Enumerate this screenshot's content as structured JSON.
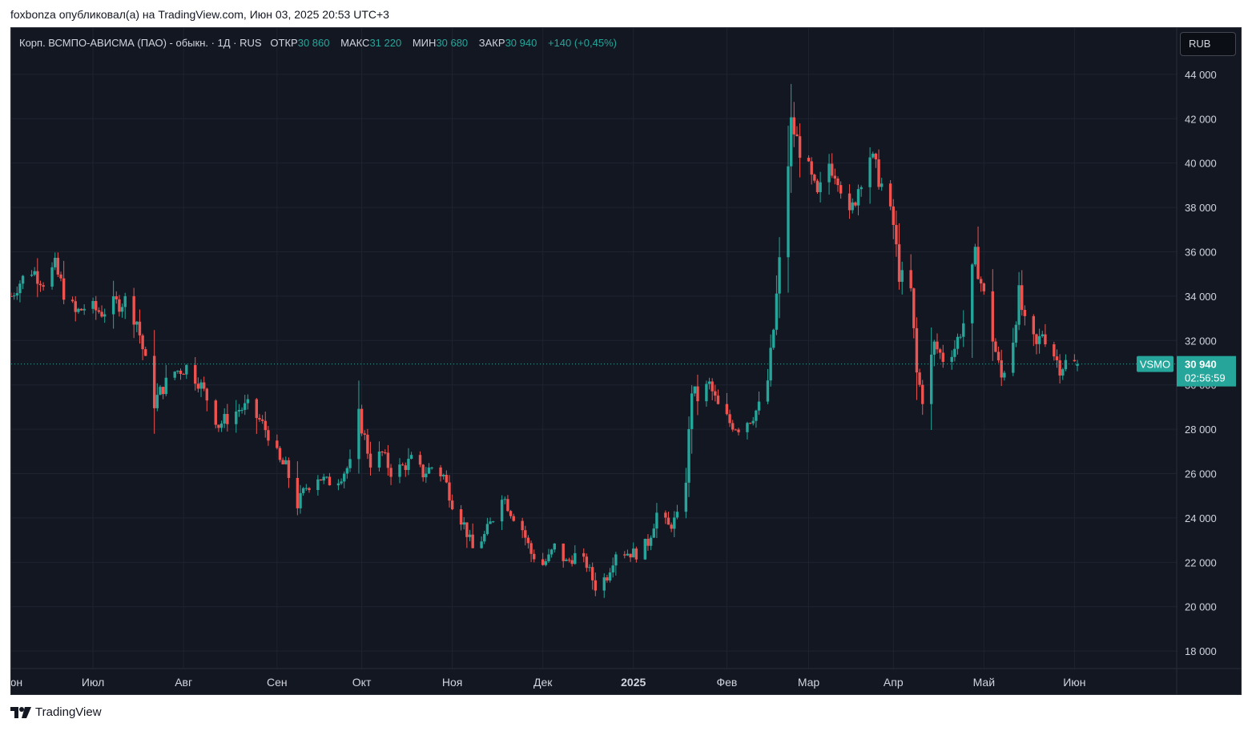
{
  "header": {
    "publisher_line": "foxbonza опубликовал(а) на TradingView.com, Июн 03, 2025 20:53 UTC+3"
  },
  "legend": {
    "symbol_desc": "Корп. ВСМПО-АВИСМА (ПАО) - обыкн. · 1Д · RUS",
    "open_label": "ОТКР",
    "open_value": "30 860",
    "high_label": "МАКС",
    "high_value": "31 220",
    "low_label": "МИН",
    "low_value": "30 680",
    "close_label": "ЗАКР",
    "close_value": "30 940",
    "change": "+140 (+0,45%)"
  },
  "currency_button": "RUB",
  "price_tag": {
    "ticker": "VSMO",
    "price": "30 940",
    "countdown": "02:56:59"
  },
  "footer": {
    "brand": "TradingView"
  },
  "colors": {
    "background": "#131722",
    "up": "#26a69a",
    "down": "#ef5350",
    "grid": "#1f2330",
    "axis_text": "#d1d4dc",
    "last_price_line": "#26a69a"
  },
  "chart_data": {
    "type": "candlestick",
    "ylim": [
      17500,
      45800
    ],
    "y_ticks": [
      18000,
      20000,
      22000,
      24000,
      26000,
      28000,
      30000,
      32000,
      34000,
      36000,
      38000,
      40000,
      42000,
      44000
    ],
    "y_tick_labels": [
      "18 000",
      "20 000",
      "22 000",
      "24 000",
      "26 000",
      "28 000",
      "30 000",
      "32 000",
      "34 000",
      "36 000",
      "38 000",
      "40 000",
      "42 000",
      "44 000"
    ],
    "x_tick_labels": [
      "Июн",
      "Июл",
      "Авг",
      "Сен",
      "Окт",
      "Ноя",
      "Дек",
      "2025",
      "Фев",
      "Мар",
      "Апр",
      "Май",
      "Июн"
    ],
    "x_tick_dates": [
      "2024-06-03",
      "2024-07-01",
      "2024-08-01",
      "2024-09-02",
      "2024-10-01",
      "2024-11-01",
      "2024-12-02",
      "2025-01-02",
      "2025-02-03",
      "2025-03-03",
      "2025-04-01",
      "2025-05-02",
      "2025-06-02"
    ],
    "x_range": [
      "2024-06-03",
      "2025-07-07"
    ],
    "last_close": 30940,
    "price_points": [
      [
        "2024-06-03",
        34000
      ],
      [
        "2024-06-05",
        34500
      ],
      [
        "2024-06-10",
        35200
      ],
      [
        "2024-06-14",
        34700
      ],
      [
        "2024-06-18",
        35300
      ],
      [
        "2024-06-21",
        34200
      ],
      [
        "2024-06-25",
        33200
      ],
      [
        "2024-06-28",
        33500
      ],
      [
        "2024-07-04",
        33300
      ],
      [
        "2024-07-08",
        33600
      ],
      [
        "2024-07-12",
        33800
      ],
      [
        "2024-07-16",
        32900
      ],
      [
        "2024-07-19",
        31000
      ],
      [
        "2024-07-22",
        29200
      ],
      [
        "2024-07-25",
        29900
      ],
      [
        "2024-07-29",
        30600
      ],
      [
        "2024-08-02",
        30800
      ],
      [
        "2024-08-06",
        30200
      ],
      [
        "2024-08-09",
        29400
      ],
      [
        "2024-08-13",
        28200
      ],
      [
        "2024-08-16",
        28500
      ],
      [
        "2024-08-20",
        28900
      ],
      [
        "2024-08-23",
        29000
      ],
      [
        "2024-08-27",
        28400
      ],
      [
        "2024-08-30",
        27800
      ],
      [
        "2024-09-03",
        26500
      ],
      [
        "2024-09-05",
        26300
      ],
      [
        "2024-09-09",
        24600
      ],
      [
        "2024-09-12",
        25400
      ],
      [
        "2024-09-16",
        25900
      ],
      [
        "2024-09-19",
        25600
      ],
      [
        "2024-09-23",
        25800
      ],
      [
        "2024-09-27",
        26400
      ],
      [
        "2024-09-30",
        28600
      ],
      [
        "2024-10-02",
        27600
      ],
      [
        "2024-10-04",
        26500
      ],
      [
        "2024-10-08",
        26900
      ],
      [
        "2024-10-11",
        26100
      ],
      [
        "2024-10-15",
        26300
      ],
      [
        "2024-10-18",
        26600
      ],
      [
        "2024-10-22",
        26000
      ],
      [
        "2024-10-25",
        26300
      ],
      [
        "2024-10-29",
        25900
      ],
      [
        "2024-11-01",
        24700
      ],
      [
        "2024-11-05",
        23700
      ],
      [
        "2024-11-08",
        22600
      ],
      [
        "2024-11-12",
        23200
      ],
      [
        "2024-11-15",
        24000
      ],
      [
        "2024-11-18",
        25100
      ],
      [
        "2024-11-21",
        24300
      ],
      [
        "2024-11-25",
        23500
      ],
      [
        "2024-11-28",
        22400
      ],
      [
        "2024-12-02",
        21900
      ],
      [
        "2024-12-04",
        22200
      ],
      [
        "2024-12-06",
        22700
      ],
      [
        "2024-12-10",
        22000
      ],
      [
        "2024-12-13",
        22300
      ],
      [
        "2024-12-17",
        21900
      ],
      [
        "2024-12-20",
        20900
      ],
      [
        "2024-12-24",
        21400
      ],
      [
        "2024-12-27",
        22500
      ],
      [
        "2025-01-03",
        22400
      ],
      [
        "2025-01-07",
        22900
      ],
      [
        "2025-01-10",
        24200
      ],
      [
        "2025-01-14",
        23600
      ],
      [
        "2025-01-17",
        24000
      ],
      [
        "2025-01-20",
        25800
      ],
      [
        "2025-01-22",
        29800
      ],
      [
        "2025-01-24",
        29400
      ],
      [
        "2025-01-28",
        30000
      ],
      [
        "2025-01-31",
        29000
      ],
      [
        "2025-02-04",
        28300
      ],
      [
        "2025-02-07",
        28100
      ],
      [
        "2025-02-11",
        28500
      ],
      [
        "2025-02-14",
        29000
      ],
      [
        "2025-02-17",
        30200
      ],
      [
        "2025-02-19",
        32500
      ],
      [
        "2025-02-21",
        35500
      ],
      [
        "2025-02-24",
        40000
      ],
      [
        "2025-02-25",
        41800
      ],
      [
        "2025-02-27",
        41000
      ],
      [
        "2025-03-03",
        39600
      ],
      [
        "2025-03-06",
        38400
      ],
      [
        "2025-03-10",
        40000
      ],
      [
        "2025-03-13",
        39500
      ],
      [
        "2025-03-17",
        37500
      ],
      [
        "2025-03-21",
        39400
      ],
      [
        "2025-03-24",
        40400
      ],
      [
        "2025-03-28",
        39000
      ],
      [
        "2025-04-01",
        37200
      ],
      [
        "2025-04-03",
        35000
      ],
      [
        "2025-04-07",
        34200
      ],
      [
        "2025-04-09",
        30500
      ],
      [
        "2025-04-11",
        29400
      ],
      [
        "2025-04-15",
        31800
      ],
      [
        "2025-04-18",
        31200
      ],
      [
        "2025-04-22",
        31700
      ],
      [
        "2025-04-25",
        32800
      ],
      [
        "2025-04-29",
        35800
      ],
      [
        "2025-05-02",
        34000
      ],
      [
        "2025-05-06",
        31500
      ],
      [
        "2025-05-08",
        30300
      ],
      [
        "2025-05-12",
        32100
      ],
      [
        "2025-05-14",
        34100
      ],
      [
        "2025-05-16",
        32700
      ],
      [
        "2025-05-20",
        31700
      ],
      [
        "2025-05-22",
        32400
      ],
      [
        "2025-05-26",
        31400
      ],
      [
        "2025-05-28",
        30800
      ],
      [
        "2025-05-30",
        31000
      ],
      [
        "2025-06-03",
        30940
      ]
    ]
  }
}
